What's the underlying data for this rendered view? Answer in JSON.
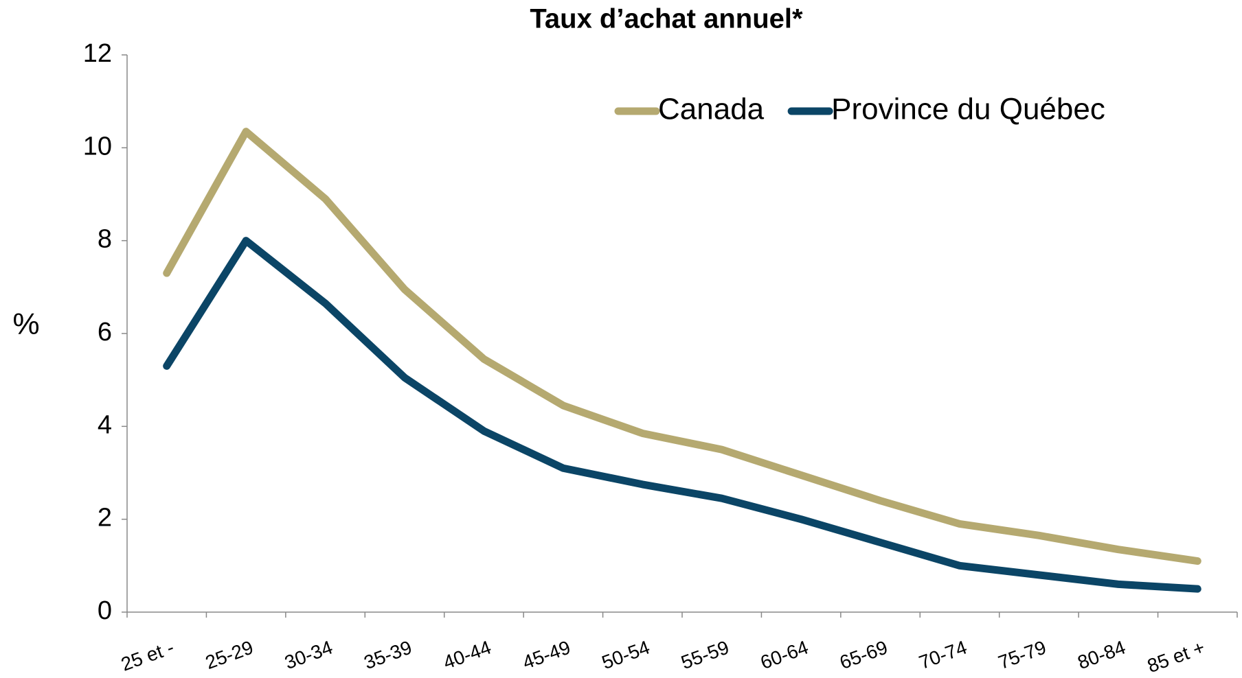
{
  "chart_data": {
    "type": "line",
    "title": "Taux d’achat annuel*",
    "y_label": "%",
    "categories": [
      "25 et -",
      "25-29",
      "30-34",
      "35-39",
      "40-44",
      "45-49",
      "50-54",
      "55-59",
      "60-64",
      "65-69",
      "70-74",
      "75-79",
      "80-84",
      "85 et +"
    ],
    "series": [
      {
        "name": "Canada",
        "color": "#b5a970",
        "values": [
          7.3,
          10.35,
          8.9,
          6.95,
          5.45,
          4.45,
          3.85,
          3.5,
          2.95,
          2.4,
          1.9,
          1.65,
          1.35,
          1.1
        ]
      },
      {
        "name": "Province du Québec",
        "color": "#0b4566",
        "values": [
          5.3,
          8.0,
          6.65,
          5.05,
          3.9,
          3.1,
          2.75,
          2.45,
          2.0,
          1.5,
          1.0,
          0.8,
          0.6,
          0.5
        ]
      }
    ],
    "ylim": [
      0,
      12
    ],
    "yticks": [
      0,
      2,
      4,
      6,
      8,
      10,
      12
    ],
    "legend": "top-right"
  }
}
